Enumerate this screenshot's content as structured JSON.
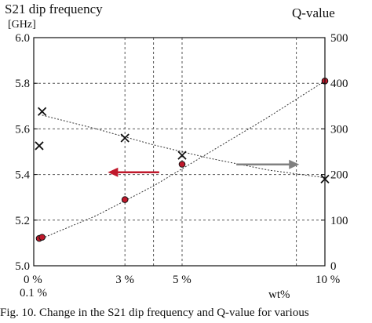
{
  "chart_data": {
    "type": "scatter",
    "title_left": "S21 dip frequency",
    "title_left_unit": "[GHz]",
    "title_right": "Q-value",
    "xlabel": "wt%",
    "x_range": [
      0,
      10
    ],
    "x_ticks": [
      {
        "x": 0,
        "label": "0 %"
      },
      {
        "x": 0.1,
        "label": "0.1 %"
      },
      {
        "x": 3,
        "label": "3 %"
      },
      {
        "x": 5,
        "label": "5 %"
      },
      {
        "x": 10,
        "label": "10 %"
      }
    ],
    "x_gridlines": [
      3,
      4,
      5,
      9
    ],
    "y_left": {
      "range": [
        5.0,
        6.0
      ],
      "ticks": [
        "5.0",
        "5.2",
        "5.4",
        "5.6",
        "5.8",
        "6.0"
      ]
    },
    "y_right": {
      "range": [
        0,
        500
      ],
      "ticks": [
        "0",
        "100",
        "200",
        "300",
        "400",
        "500"
      ]
    },
    "series": [
      {
        "axis": "left",
        "marker": "circle",
        "color": "#c0182b",
        "points": [
          [
            0,
            5.12
          ],
          [
            0.1,
            5.125
          ],
          [
            3,
            5.29
          ],
          [
            5,
            5.445
          ],
          [
            10,
            5.81
          ]
        ],
        "trend": [
          [
            0,
            5.115
          ],
          [
            2,
            5.22
          ],
          [
            4,
            5.35
          ],
          [
            6,
            5.5
          ],
          [
            8,
            5.65
          ],
          [
            10,
            5.81
          ]
        ]
      },
      {
        "axis": "right",
        "marker": "x",
        "color": "#111111",
        "points": [
          [
            0,
            263
          ],
          [
            0.1,
            338
          ],
          [
            3,
            280
          ],
          [
            5,
            242
          ],
          [
            10,
            190
          ]
        ],
        "trend": [
          [
            0.1,
            330
          ],
          [
            2,
            300
          ],
          [
            4,
            265
          ],
          [
            6,
            235
          ],
          [
            8,
            210
          ],
          [
            10,
            193
          ]
        ]
      }
    ],
    "arrows": [
      {
        "axis": "left",
        "from": [
          4.2,
          5.41
        ],
        "to": [
          2.4,
          5.41
        ],
        "color": "#c0182b"
      },
      {
        "axis": "right",
        "from": [
          6.9,
          222
        ],
        "to": [
          9.1,
          222
        ],
        "color": "#808080"
      }
    ]
  },
  "caption": "Fig. 10. Change in the S21 dip frequency and Q-value for various"
}
